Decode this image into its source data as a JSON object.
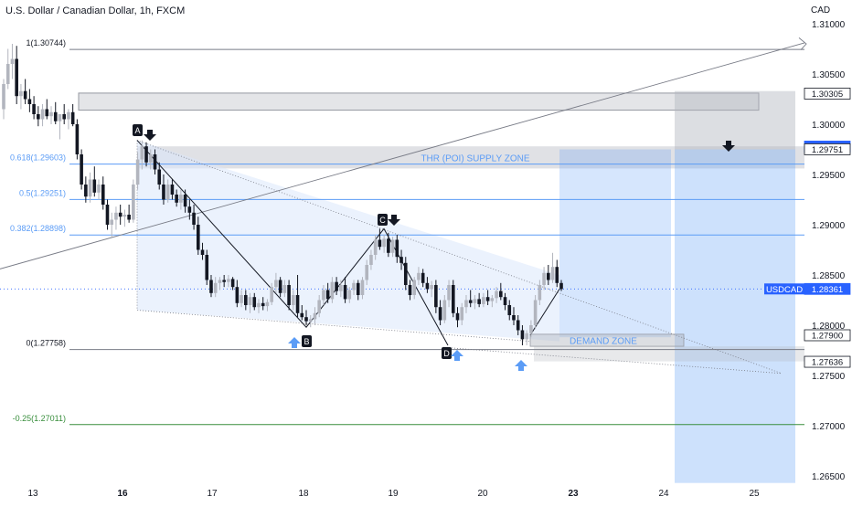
{
  "header": {
    "title": "U.S. Dollar / Canadian Dollar, 1h, FXCM",
    "currency": "CAD"
  },
  "colors": {
    "up_candle": "#b2b5be",
    "down_candle": "#131722",
    "fib_blue": "#5b9cf6",
    "fib_gray": "#787b86",
    "fib_green": "#388e3c",
    "zone_gray": "#9598a1",
    "zone_blue": "#2962ff",
    "price_tag": "#2962ff",
    "text": "#131722"
  },
  "chart_data": {
    "type": "candlestick",
    "symbol": "USDCAD",
    "timeframe": "1h",
    "y_axis": {
      "min": 1.262,
      "max": 1.3125,
      "ticks": [
        "1.31000",
        "1.30500",
        "1.30000",
        "1.29500",
        "1.29000",
        "1.28500",
        "1.28000",
        "1.27500",
        "1.27000",
        "1.26500"
      ]
    },
    "x_axis": {
      "ticks": [
        {
          "label": "13",
          "bold": false
        },
        {
          "label": "16",
          "bold": true
        },
        {
          "label": "17",
          "bold": false
        },
        {
          "label": "18",
          "bold": false
        },
        {
          "label": "19",
          "bold": false
        },
        {
          "label": "20",
          "bold": false
        },
        {
          "label": "23",
          "bold": true
        },
        {
          "label": "24",
          "bold": false
        },
        {
          "label": "25",
          "bold": false
        }
      ]
    },
    "fib_levels": [
      {
        "label": "1(1.30744)",
        "value": 1.30744,
        "color": "#787b86"
      },
      {
        "label": "0.618(1.29603)",
        "value": 1.29603,
        "color": "#5b9cf6"
      },
      {
        "label": "0.5(1.29251)",
        "value": 1.29251,
        "color": "#5b9cf6"
      },
      {
        "label": "0.382(1.28898)",
        "value": 1.28898,
        "color": "#5b9cf6"
      },
      {
        "label": "0(1.27758)",
        "value": 1.27758,
        "color": "#787b86"
      },
      {
        "label": "-0.25(1.27011)",
        "value": 1.27011,
        "color": "#388e3c"
      }
    ],
    "price_tags": [
      {
        "label": "1.30305",
        "value": 1.30305,
        "style": "gray"
      },
      {
        "label": "1.29778",
        "value": 1.29778,
        "style": "blue"
      },
      {
        "label": "1.29751",
        "value": 1.29751,
        "style": "gray"
      },
      {
        "label": "1.28361",
        "value": 1.28361,
        "style": "blue",
        "symbol": "USDCAD"
      },
      {
        "label": "1.27900",
        "value": 1.279,
        "style": "gray"
      },
      {
        "label": "1.27636",
        "value": 1.27636,
        "style": "gray"
      }
    ],
    "current_price": 1.28361,
    "zones": {
      "supply_label": "THR (POI) SUPPLY ZONE",
      "demand_label": "DEMAND ZONE"
    },
    "pattern_points": [
      {
        "label": "A",
        "value": 1.2984
      },
      {
        "label": "B",
        "value": 1.2798
      },
      {
        "label": "C",
        "value": 1.2896
      },
      {
        "label": "D",
        "value": 1.278
      }
    ],
    "candles": [
      [
        1.3015,
        1.3045,
        1.3005,
        1.304
      ],
      [
        1.304,
        1.3075,
        1.3035,
        1.306
      ],
      [
        1.306,
        1.308,
        1.3045,
        1.3065
      ],
      [
        1.3065,
        1.3078,
        1.302,
        1.3028
      ],
      [
        1.3028,
        1.304,
        1.3015,
        1.3033
      ],
      [
        1.3033,
        1.3045,
        1.302,
        1.3025
      ],
      [
        1.3025,
        1.3035,
        1.3012,
        1.302
      ],
      [
        1.302,
        1.3028,
        1.3005,
        1.301
      ],
      [
        1.301,
        1.3018,
        1.2998,
        1.3005
      ],
      [
        1.3005,
        1.302,
        1.2998,
        1.3015
      ],
      [
        1.3015,
        1.3025,
        1.3005,
        1.3008
      ],
      [
        1.3008,
        1.3018,
        1.3,
        1.3012
      ],
      [
        1.3012,
        1.3022,
        1.3,
        1.3003
      ],
      [
        1.3003,
        1.301,
        1.2985,
        1.301
      ],
      [
        1.301,
        1.302,
        1.3,
        1.3005
      ],
      [
        1.3005,
        1.3015,
        1.2995,
        1.3012
      ],
      [
        1.3012,
        1.302,
        1.2998,
        1.3
      ],
      [
        1.3,
        1.3005,
        1.2965,
        1.297
      ],
      [
        1.297,
        1.2975,
        1.2935,
        1.294
      ],
      [
        1.294,
        1.2948,
        1.2922,
        1.2928
      ],
      [
        1.2928,
        1.2952,
        1.2922,
        1.2945
      ],
      [
        1.2945,
        1.2958,
        1.2928,
        1.2932
      ],
      [
        1.2932,
        1.2945,
        1.2925,
        1.294
      ],
      [
        1.294,
        1.2948,
        1.2915,
        1.292
      ],
      [
        1.292,
        1.2925,
        1.2895,
        1.29
      ],
      [
        1.29,
        1.2912,
        1.2888,
        1.2905
      ],
      [
        1.2905,
        1.2918,
        1.2895,
        1.2912
      ],
      [
        1.2912,
        1.292,
        1.29,
        1.2908
      ],
      [
        1.2908,
        1.2915,
        1.2898,
        1.291
      ],
      [
        1.291,
        1.292,
        1.2902,
        1.2905
      ],
      [
        1.2905,
        1.2945,
        1.2902,
        1.294
      ],
      [
        1.294,
        1.2972,
        1.2935,
        1.2965
      ],
      [
        1.2965,
        1.2984,
        1.2955,
        1.2978
      ],
      [
        1.2978,
        1.2982,
        1.2958,
        1.2962
      ],
      [
        1.2962,
        1.2975,
        1.2955,
        1.297
      ],
      [
        1.297,
        1.2975,
        1.295,
        1.2955
      ],
      [
        1.2955,
        1.2962,
        1.2935,
        1.294
      ],
      [
        1.294,
        1.295,
        1.292,
        1.2925
      ],
      [
        1.2925,
        1.2945,
        1.2922,
        1.294
      ],
      [
        1.294,
        1.2945,
        1.2925,
        1.293
      ],
      [
        1.293,
        1.2935,
        1.2918,
        1.2922
      ],
      [
        1.2922,
        1.2935,
        1.2915,
        1.293
      ],
      [
        1.293,
        1.2935,
        1.2912,
        1.2918
      ],
      [
        1.2918,
        1.2925,
        1.2905,
        1.2912
      ],
      [
        1.2912,
        1.292,
        1.2895,
        1.29
      ],
      [
        1.29,
        1.2908,
        1.287,
        1.2875
      ],
      [
        1.2875,
        1.2882,
        1.2865,
        1.287
      ],
      [
        1.287,
        1.2875,
        1.284,
        1.2845
      ],
      [
        1.2845,
        1.285,
        1.2828,
        1.2832
      ],
      [
        1.2832,
        1.2848,
        1.2828,
        1.2842
      ],
      [
        1.2842,
        1.2848,
        1.2835,
        1.2845
      ],
      [
        1.2845,
        1.285,
        1.2838,
        1.2843
      ],
      [
        1.2843,
        1.285,
        1.2838,
        1.2846
      ],
      [
        1.2846,
        1.2848,
        1.2835,
        1.2838
      ],
      [
        1.2838,
        1.2845,
        1.2818,
        1.2822
      ],
      [
        1.2822,
        1.2835,
        1.2818,
        1.283
      ],
      [
        1.283,
        1.2835,
        1.2815,
        1.282
      ],
      [
        1.282,
        1.2832,
        1.2812,
        1.2828
      ],
      [
        1.2828,
        1.2832,
        1.2815,
        1.2818
      ],
      [
        1.2818,
        1.2826,
        1.2812,
        1.2822
      ],
      [
        1.2822,
        1.2828,
        1.2815,
        1.2819
      ],
      [
        1.2819,
        1.2826,
        1.2814,
        1.2823
      ],
      [
        1.2823,
        1.2842,
        1.282,
        1.2838
      ],
      [
        1.2838,
        1.2852,
        1.2832,
        1.2845
      ],
      [
        1.2845,
        1.2848,
        1.2828,
        1.2832
      ],
      [
        1.2832,
        1.2845,
        1.2828,
        1.284
      ],
      [
        1.284,
        1.2845,
        1.2815,
        1.282
      ],
      [
        1.282,
        1.2835,
        1.2815,
        1.283
      ],
      [
        1.283,
        1.285,
        1.2808,
        1.2812
      ],
      [
        1.2812,
        1.282,
        1.2805,
        1.2808
      ],
      [
        1.2808,
        1.2815,
        1.28,
        1.2804
      ],
      [
        1.2804,
        1.281,
        1.2798,
        1.2806
      ],
      [
        1.2806,
        1.2818,
        1.28,
        1.2812
      ],
      [
        1.2812,
        1.283,
        1.2808,
        1.2825
      ],
      [
        1.2825,
        1.284,
        1.282,
        1.2835
      ],
      [
        1.2835,
        1.2842,
        1.2822,
        1.2826
      ],
      [
        1.2826,
        1.2848,
        1.2822,
        1.2843
      ],
      [
        1.2843,
        1.2848,
        1.283,
        1.2834
      ],
      [
        1.2834,
        1.2845,
        1.2828,
        1.284
      ],
      [
        1.284,
        1.2848,
        1.2822,
        1.2826
      ],
      [
        1.2826,
        1.2838,
        1.2822,
        1.2835
      ],
      [
        1.2835,
        1.2845,
        1.283,
        1.2842
      ],
      [
        1.2842,
        1.2845,
        1.2825,
        1.283
      ],
      [
        1.283,
        1.2848,
        1.2826,
        1.2845
      ],
      [
        1.2845,
        1.2865,
        1.284,
        1.286
      ],
      [
        1.286,
        1.2875,
        1.2855,
        1.287
      ],
      [
        1.287,
        1.289,
        1.2865,
        1.2885
      ],
      [
        1.2885,
        1.2896,
        1.2875,
        1.2878
      ],
      [
        1.2878,
        1.289,
        1.2872,
        1.2886
      ],
      [
        1.2886,
        1.2892,
        1.2868,
        1.2872
      ],
      [
        1.2872,
        1.2888,
        1.2868,
        1.2885
      ],
      [
        1.2885,
        1.289,
        1.2862,
        1.2868
      ],
      [
        1.2868,
        1.2875,
        1.2855,
        1.2862
      ],
      [
        1.2862,
        1.2868,
        1.2835,
        1.284
      ],
      [
        1.284,
        1.2845,
        1.2825,
        1.283
      ],
      [
        1.283,
        1.2848,
        1.2826,
        1.2845
      ],
      [
        1.2845,
        1.2858,
        1.284,
        1.2852
      ],
      [
        1.2852,
        1.2856,
        1.2838,
        1.2842
      ],
      [
        1.2842,
        1.2848,
        1.2832,
        1.2836
      ],
      [
        1.2836,
        1.2844,
        1.2828,
        1.284
      ],
      [
        1.284,
        1.2845,
        1.2812,
        1.2818
      ],
      [
        1.2818,
        1.2825,
        1.28,
        1.2805
      ],
      [
        1.2805,
        1.283,
        1.2802,
        1.2825
      ],
      [
        1.2825,
        1.2845,
        1.2818,
        1.284
      ],
      [
        1.284,
        1.2845,
        1.2808,
        1.2812
      ],
      [
        1.2812,
        1.2818,
        1.2798,
        1.2805
      ],
      [
        1.2805,
        1.2822,
        1.28,
        1.2818
      ],
      [
        1.2818,
        1.283,
        1.2812,
        1.2825
      ],
      [
        1.2825,
        1.2835,
        1.2818,
        1.2822
      ],
      [
        1.2822,
        1.283,
        1.2816,
        1.2826
      ],
      [
        1.2826,
        1.2832,
        1.2818,
        1.2821
      ],
      [
        1.2821,
        1.2832,
        1.2818,
        1.2828
      ],
      [
        1.2828,
        1.2835,
        1.282,
        1.2824
      ],
      [
        1.2824,
        1.283,
        1.2818,
        1.2827
      ],
      [
        1.2827,
        1.2838,
        1.2822,
        1.2834
      ],
      [
        1.2834,
        1.2842,
        1.2825,
        1.2828
      ],
      [
        1.2828,
        1.2832,
        1.2815,
        1.282
      ],
      [
        1.282,
        1.2825,
        1.2805,
        1.281
      ],
      [
        1.281,
        1.2818,
        1.28,
        1.2805
      ],
      [
        1.2805,
        1.281,
        1.279,
        1.2795
      ],
      [
        1.2795,
        1.28,
        1.278,
        1.2786
      ],
      [
        1.2786,
        1.2795,
        1.278,
        1.2792
      ],
      [
        1.2792,
        1.2805,
        1.2788,
        1.28
      ],
      [
        1.28,
        1.283,
        1.2796,
        1.2825
      ],
      [
        1.2825,
        1.2845,
        1.282,
        1.284
      ],
      [
        1.284,
        1.2858,
        1.2835,
        1.2852
      ],
      [
        1.2852,
        1.286,
        1.284,
        1.2845
      ],
      [
        1.2845,
        1.2872,
        1.2842,
        1.2858
      ],
      [
        1.2858,
        1.2865,
        1.2838,
        1.2842
      ],
      [
        1.2842,
        1.2845,
        1.2834,
        1.2836
      ]
    ]
  }
}
